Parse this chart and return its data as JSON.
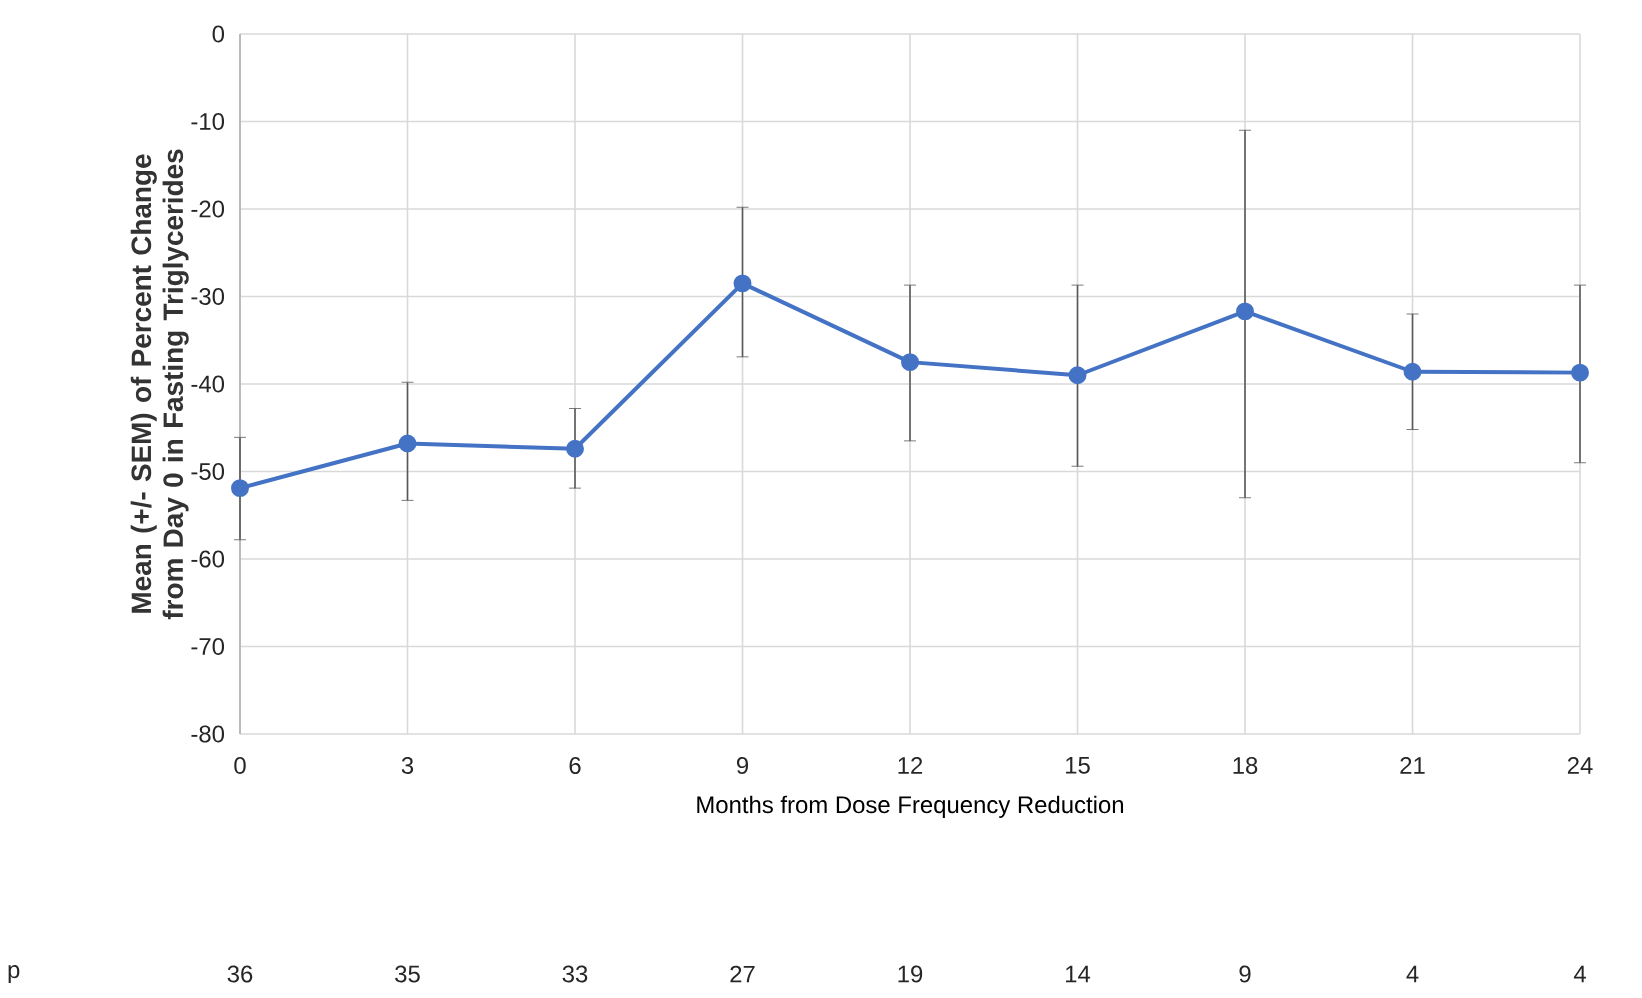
{
  "chart_data": {
    "type": "line",
    "xlabel": "Months from Dose Frequency Reduction",
    "ylabel": "Mean (+/- SEM) of Percent Change from Day 0 in Fasting Triglycerides",
    "x": [
      0,
      3,
      6,
      9,
      12,
      15,
      18,
      21,
      24
    ],
    "values": [
      -51.9,
      -46.8,
      -47.4,
      -28.5,
      -37.5,
      -39,
      -31.7,
      -38.6,
      -38.7
    ],
    "errors": [
      [
        -57.8,
        -46.1
      ],
      [
        -53.3,
        -39.8
      ],
      [
        -51.9,
        -42.8
      ],
      [
        -36.9,
        -19.8
      ],
      [
        -46.5,
        -28.7
      ],
      [
        -49.4,
        -28.7
      ],
      [
        -53,
        -11
      ],
      [
        -45.2,
        -32
      ],
      [
        -49,
        -28.7
      ]
    ],
    "color": "#4472c4",
    "marker": "circle",
    "line_style": "solid",
    "grid": true,
    "xlim": [
      0,
      24
    ],
    "xticks": [
      0,
      3,
      6,
      9,
      12,
      15,
      18,
      21,
      24
    ],
    "ylim": [
      -80,
      0
    ],
    "yticks": [
      -80,
      -70,
      -60,
      -50,
      -40,
      -30,
      -20,
      -10,
      0
    ],
    "annotations": [
      "p",
      "36",
      "35",
      "33",
      "27",
      "19",
      "14",
      "9",
      "4",
      "4"
    ]
  }
}
